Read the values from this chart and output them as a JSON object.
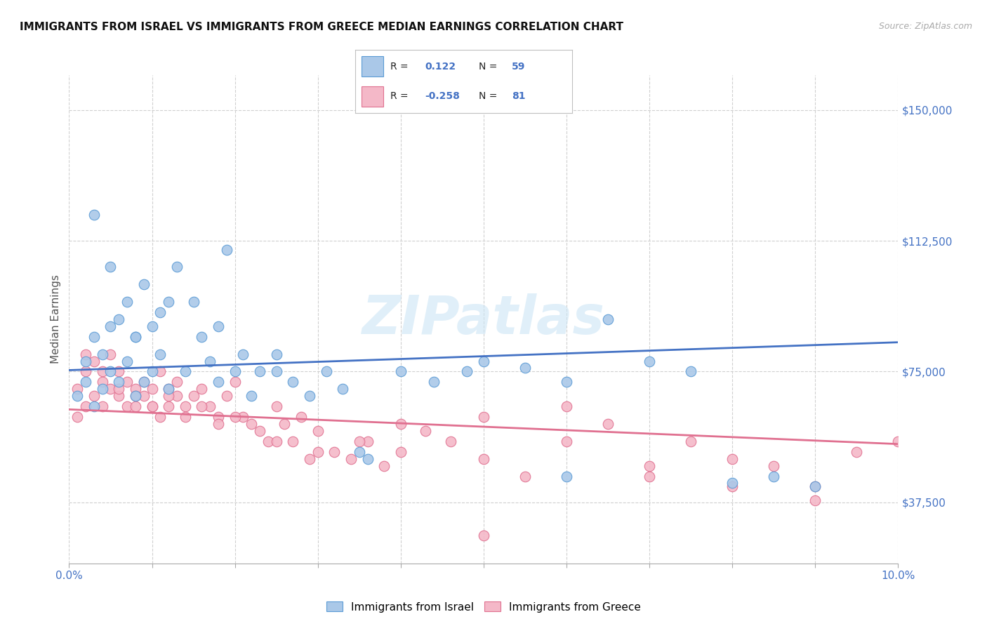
{
  "title": "IMMIGRANTS FROM ISRAEL VS IMMIGRANTS FROM GREECE MEDIAN EARNINGS CORRELATION CHART",
  "source": "Source: ZipAtlas.com",
  "ylabel": "Median Earnings",
  "watermark": "ZIPatlas",
  "xlim": [
    0.0,
    0.1
  ],
  "ylim": [
    20000,
    160000
  ],
  "xtick_positions": [
    0.0,
    0.01,
    0.02,
    0.03,
    0.04,
    0.05,
    0.06,
    0.07,
    0.08,
    0.09,
    0.1
  ],
  "ytick_positions": [
    37500,
    75000,
    112500,
    150000
  ],
  "ytick_labels": [
    "$37,500",
    "$75,000",
    "$112,500",
    "$150,000"
  ],
  "israel_color": "#aac8e8",
  "israel_edge_color": "#5b9bd5",
  "greece_color": "#f4b8c8",
  "greece_edge_color": "#e07090",
  "trendline_israel_color": "#4472c4",
  "trendline_greece_color": "#e07090",
  "legend_label_israel": "Immigrants from Israel",
  "legend_label_greece": "Immigrants from Greece",
  "R_israel": 0.122,
  "N_israel": 59,
  "R_greece": -0.258,
  "N_greece": 81,
  "israel_x": [
    0.001,
    0.002,
    0.002,
    0.003,
    0.003,
    0.004,
    0.004,
    0.005,
    0.005,
    0.006,
    0.006,
    0.007,
    0.007,
    0.008,
    0.008,
    0.009,
    0.009,
    0.01,
    0.01,
    0.011,
    0.011,
    0.012,
    0.013,
    0.014,
    0.015,
    0.016,
    0.017,
    0.018,
    0.019,
    0.02,
    0.021,
    0.022,
    0.023,
    0.025,
    0.027,
    0.029,
    0.031,
    0.033,
    0.036,
    0.04,
    0.044,
    0.048,
    0.055,
    0.06,
    0.065,
    0.07,
    0.075,
    0.08,
    0.085,
    0.09,
    0.003,
    0.005,
    0.008,
    0.012,
    0.018,
    0.025,
    0.035,
    0.05,
    0.06
  ],
  "israel_y": [
    68000,
    72000,
    78000,
    65000,
    85000,
    70000,
    80000,
    88000,
    75000,
    72000,
    90000,
    95000,
    78000,
    85000,
    68000,
    100000,
    72000,
    88000,
    75000,
    80000,
    92000,
    70000,
    105000,
    75000,
    95000,
    85000,
    78000,
    72000,
    110000,
    75000,
    80000,
    68000,
    75000,
    80000,
    72000,
    68000,
    75000,
    70000,
    50000,
    75000,
    72000,
    75000,
    76000,
    72000,
    90000,
    78000,
    75000,
    43000,
    45000,
    42000,
    120000,
    105000,
    85000,
    95000,
    88000,
    75000,
    52000,
    78000,
    45000
  ],
  "greece_x": [
    0.001,
    0.001,
    0.002,
    0.002,
    0.003,
    0.003,
    0.004,
    0.004,
    0.005,
    0.005,
    0.006,
    0.006,
    0.007,
    0.007,
    0.008,
    0.008,
    0.009,
    0.009,
    0.01,
    0.01,
    0.011,
    0.011,
    0.012,
    0.012,
    0.013,
    0.013,
    0.014,
    0.015,
    0.016,
    0.017,
    0.018,
    0.019,
    0.02,
    0.021,
    0.022,
    0.023,
    0.024,
    0.025,
    0.026,
    0.027,
    0.028,
    0.029,
    0.03,
    0.032,
    0.034,
    0.036,
    0.038,
    0.04,
    0.043,
    0.046,
    0.05,
    0.055,
    0.06,
    0.065,
    0.07,
    0.075,
    0.08,
    0.085,
    0.09,
    0.095,
    0.002,
    0.004,
    0.006,
    0.008,
    0.01,
    0.012,
    0.014,
    0.016,
    0.018,
    0.02,
    0.025,
    0.03,
    0.035,
    0.04,
    0.05,
    0.06,
    0.07,
    0.08,
    0.09,
    0.1,
    0.05
  ],
  "greece_y": [
    62000,
    70000,
    65000,
    75000,
    68000,
    78000,
    72000,
    65000,
    70000,
    80000,
    68000,
    75000,
    65000,
    72000,
    70000,
    65000,
    68000,
    72000,
    65000,
    70000,
    75000,
    62000,
    70000,
    65000,
    68000,
    72000,
    65000,
    68000,
    70000,
    65000,
    62000,
    68000,
    72000,
    62000,
    60000,
    58000,
    55000,
    65000,
    60000,
    55000,
    62000,
    50000,
    58000,
    52000,
    50000,
    55000,
    48000,
    52000,
    58000,
    55000,
    50000,
    45000,
    55000,
    60000,
    45000,
    55000,
    50000,
    48000,
    42000,
    52000,
    80000,
    75000,
    70000,
    68000,
    65000,
    68000,
    62000,
    65000,
    60000,
    62000,
    55000,
    52000,
    55000,
    60000,
    62000,
    65000,
    48000,
    42000,
    38000,
    55000,
    28000
  ]
}
